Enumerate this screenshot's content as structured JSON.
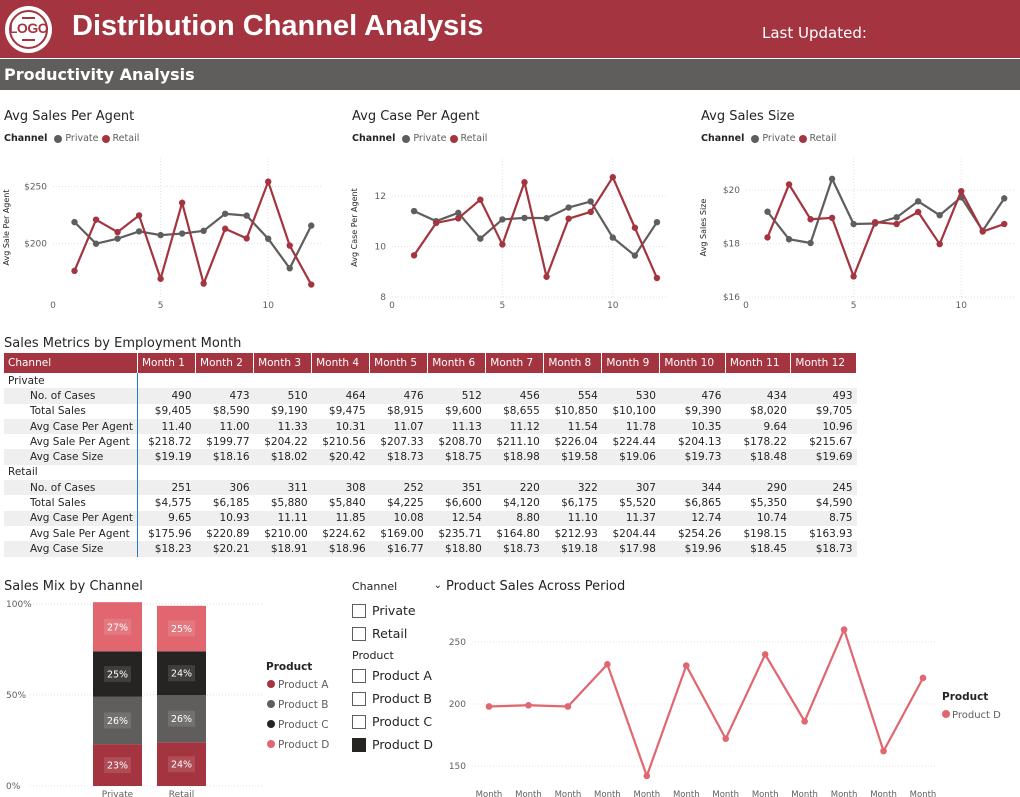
{
  "header": {
    "title": "Distribution Channel Analysis",
    "last_updated_label": "Last Updated:",
    "logo_text": "LOGO",
    "brand_color": "#a4343f"
  },
  "section": {
    "title": "Productivity Analysis"
  },
  "legend": {
    "title": "Channel",
    "private": "Private",
    "retail": "Retail",
    "private_color": "#605e5c",
    "retail_color": "#a4343f"
  },
  "charts": {
    "sales_per_agent": {
      "title": "Avg Sales Per Agent",
      "ylabel": "Avg Sale Per Agent",
      "yticks": [
        "$250",
        "$200"
      ],
      "xticks": [
        "0",
        "5",
        "10"
      ]
    },
    "case_per_agent": {
      "title": "Avg Case Per Agent",
      "ylabel": "Avg Case Per Agent",
      "yticks": [
        "12",
        "10",
        "8"
      ],
      "xticks": [
        "0",
        "5",
        "10"
      ]
    },
    "sales_size": {
      "title": "Avg Sales Size",
      "ylabel": "Avg Sales Size",
      "yticks": [
        "$20",
        "$18",
        "$16"
      ],
      "xticks": [
        "0",
        "5",
        "10"
      ]
    },
    "sales_mix": {
      "title": "Sales Mix by Channel",
      "yticks": [
        "100%",
        "50%",
        "0%"
      ],
      "legend_title": "Product"
    },
    "product_sales": {
      "title": "Product Sales Across Period",
      "yticks": [
        "250",
        "200",
        "150"
      ],
      "x_label_repeat": "Month",
      "legend_title": "Product",
      "legend_item": "Product D"
    }
  },
  "table": {
    "title": "Sales Metrics by Employment Month",
    "columns": [
      "Channel",
      "Month 1",
      "Month 2",
      "Month 3",
      "Month 4",
      "Month 5",
      "Month 6",
      "Month 7",
      "Month 8",
      "Month 9",
      "Month 10",
      "Month 11",
      "Month 12"
    ],
    "groups": [
      {
        "name": "Private",
        "rows": [
          {
            "label": "No. of Cases",
            "values": [
              "490",
              "473",
              "510",
              "464",
              "476",
              "512",
              "456",
              "554",
              "530",
              "476",
              "434",
              "493"
            ]
          },
          {
            "label": "Total Sales",
            "values": [
              "$9,405",
              "$8,590",
              "$9,190",
              "$9,475",
              "$8,915",
              "$9,600",
              "$8,655",
              "$10,850",
              "$10,100",
              "$9,390",
              "$8,020",
              "$9,705"
            ]
          },
          {
            "label": "Avg Case Per Agent",
            "values": [
              "11.40",
              "11.00",
              "11.33",
              "10.31",
              "11.07",
              "11.13",
              "11.12",
              "11.54",
              "11.78",
              "10.35",
              "9.64",
              "10.96"
            ]
          },
          {
            "label": "Avg Sale Per Agent",
            "values": [
              "$218.72",
              "$199.77",
              "$204.22",
              "$210.56",
              "$207.33",
              "$208.70",
              "$211.10",
              "$226.04",
              "$224.44",
              "$204.13",
              "$178.22",
              "$215.67"
            ]
          },
          {
            "label": "Avg Case Size",
            "values": [
              "$19.19",
              "$18.16",
              "$18.02",
              "$20.42",
              "$18.73",
              "$18.75",
              "$18.98",
              "$19.58",
              "$19.06",
              "$19.73",
              "$18.48",
              "$19.69"
            ]
          }
        ]
      },
      {
        "name": "Retail",
        "rows": [
          {
            "label": "No. of Cases",
            "values": [
              "251",
              "306",
              "311",
              "308",
              "252",
              "351",
              "220",
              "322",
              "307",
              "344",
              "290",
              "245"
            ]
          },
          {
            "label": "Total Sales",
            "values": [
              "$4,575",
              "$6,185",
              "$5,880",
              "$5,840",
              "$4,225",
              "$6,600",
              "$4,120",
              "$6,175",
              "$5,520",
              "$6,865",
              "$5,350",
              "$4,590"
            ]
          },
          {
            "label": "Avg Case Per Agent",
            "values": [
              "9.65",
              "10.93",
              "11.11",
              "11.85",
              "10.08",
              "12.54",
              "8.80",
              "11.10",
              "11.37",
              "12.74",
              "10.74",
              "8.75"
            ]
          },
          {
            "label": "Avg Sale Per Agent",
            "values": [
              "$175.96",
              "$220.89",
              "$210.00",
              "$224.62",
              "$169.00",
              "$235.71",
              "$164.80",
              "$212.93",
              "$204.44",
              "$254.26",
              "$198.15",
              "$163.93"
            ]
          },
          {
            "label": "Avg Case Size",
            "values": [
              "$18.23",
              "$20.21",
              "$18.91",
              "$18.96",
              "$16.77",
              "$18.80",
              "$18.73",
              "$19.18",
              "$17.98",
              "$19.96",
              "$18.45",
              "$18.73"
            ]
          }
        ]
      }
    ]
  },
  "slicer": {
    "channel_title": "Channel",
    "channel_items": [
      {
        "label": "Private",
        "checked": false
      },
      {
        "label": "Retail",
        "checked": false
      }
    ],
    "product_title": "Product",
    "product_items": [
      {
        "label": "Product A",
        "checked": false
      },
      {
        "label": "Product B",
        "checked": false
      },
      {
        "label": "Product C",
        "checked": false
      },
      {
        "label": "Product D",
        "checked": true
      }
    ]
  },
  "chart_data": [
    {
      "type": "line",
      "title": "Avg Sales Per Agent",
      "ylabel": "Avg Sale Per Agent",
      "x": [
        1,
        2,
        3,
        4,
        5,
        6,
        7,
        8,
        9,
        10,
        11,
        12
      ],
      "xlim": [
        0,
        12.5
      ],
      "ylim": [
        153,
        275
      ],
      "series": [
        {
          "name": "Private",
          "color": "#605e5c",
          "values": [
            218.72,
            199.77,
            204.22,
            210.56,
            207.33,
            208.7,
            211.1,
            226.04,
            224.44,
            204.13,
            178.22,
            215.67
          ]
        },
        {
          "name": "Retail",
          "color": "#a4343f",
          "values": [
            175.96,
            220.89,
            210.0,
            224.62,
            169.0,
            235.71,
            164.8,
            212.93,
            204.44,
            254.26,
            198.15,
            163.93
          ]
        }
      ]
    },
    {
      "type": "line",
      "title": "Avg Case Per Agent",
      "ylabel": "Avg Case Per Agent",
      "x": [
        1,
        2,
        3,
        4,
        5,
        6,
        7,
        8,
        9,
        10,
        11,
        12
      ],
      "xlim": [
        0,
        12.5
      ],
      "ylim": [
        8,
        13.5
      ],
      "series": [
        {
          "name": "Private",
          "color": "#605e5c",
          "values": [
            11.4,
            11.0,
            11.33,
            10.31,
            11.07,
            11.13,
            11.12,
            11.54,
            11.78,
            10.35,
            9.64,
            10.96
          ]
        },
        {
          "name": "Retail",
          "color": "#a4343f",
          "values": [
            9.65,
            10.93,
            11.11,
            11.85,
            10.08,
            12.54,
            8.8,
            11.1,
            11.37,
            12.74,
            10.74,
            8.75
          ]
        }
      ]
    },
    {
      "type": "line",
      "title": "Avg Sales Size",
      "ylabel": "Avg Sales Size",
      "x": [
        1,
        2,
        3,
        4,
        5,
        6,
        7,
        8,
        9,
        10,
        11,
        12
      ],
      "xlim": [
        0,
        12.5
      ],
      "ylim": [
        16,
        21.2
      ],
      "series": [
        {
          "name": "Private",
          "color": "#605e5c",
          "values": [
            19.19,
            18.16,
            18.02,
            20.42,
            18.73,
            18.75,
            18.98,
            19.58,
            19.06,
            19.73,
            18.48,
            19.69
          ]
        },
        {
          "name": "Retail",
          "color": "#a4343f",
          "values": [
            18.23,
            20.21,
            18.91,
            18.96,
            16.77,
            18.8,
            18.73,
            19.18,
            17.98,
            19.96,
            18.45,
            18.73
          ]
        }
      ]
    },
    {
      "type": "bar",
      "title": "Sales Mix by Channel",
      "stacked": true,
      "categories": [
        "Private",
        "Retail"
      ],
      "ylim": [
        0,
        100
      ],
      "series": [
        {
          "name": "Product A",
          "color": "#a4343f",
          "values": [
            23,
            24
          ]
        },
        {
          "name": "Product B",
          "color": "#605e5c",
          "values": [
            26,
            26
          ]
        },
        {
          "name": "Product C",
          "color": "#252423",
          "values": [
            25,
            24
          ]
        },
        {
          "name": "Product D",
          "color": "#e1666f",
          "values": [
            27,
            25
          ]
        }
      ]
    },
    {
      "type": "line",
      "title": "Product Sales Across Period",
      "x_label": "Month",
      "ylim": [
        140,
        270
      ],
      "series": [
        {
          "name": "Product D",
          "color": "#e1666f",
          "values": [
            198,
            199,
            198,
            232,
            142,
            231,
            172,
            240,
            186,
            260,
            162,
            221
          ]
        }
      ]
    }
  ]
}
